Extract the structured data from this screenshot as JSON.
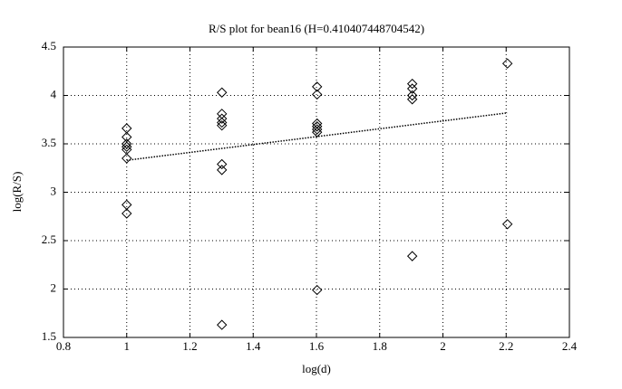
{
  "chart_data": {
    "type": "scatter",
    "title": "R/S plot for bean16 (H=0.410407448704542)",
    "xlabel": "log(d)",
    "ylabel": "log(R/S)",
    "xlim": [
      0.8,
      2.4
    ],
    "xticks": [
      0.8,
      1,
      1.2,
      1.4,
      1.6,
      1.8,
      2,
      2.2,
      2.4
    ],
    "ylim": [
      1.5,
      4.5
    ],
    "yticks": [
      1.5,
      2,
      2.5,
      3,
      3.5,
      4,
      4.5
    ],
    "grid": true,
    "series": [
      {
        "type": "scatter",
        "color": "#000000",
        "x": [
          1,
          1,
          1,
          1,
          1,
          1,
          1,
          1,
          1.301,
          1.301,
          1.301,
          1.301,
          1.301,
          1.301,
          1.301,
          1.301,
          1.602,
          1.602,
          1.602,
          1.602,
          1.602,
          1.602,
          1.602,
          1.903,
          1.903,
          1.903,
          1.903,
          1.903,
          2.204,
          2.204
        ],
        "values": [
          3.66,
          3.57,
          3.5,
          3.47,
          3.44,
          3.35,
          2.87,
          2.78,
          4.03,
          3.81,
          3.76,
          3.72,
          3.69,
          3.29,
          3.23,
          1.63,
          4.09,
          4.01,
          3.71,
          3.68,
          3.65,
          3.62,
          1.99,
          4.12,
          4.07,
          4.0,
          3.96,
          2.34,
          4.33,
          2.67
        ]
      },
      {
        "type": "line",
        "color": "#000000",
        "x": [
          1,
          2.204
        ],
        "values": [
          3.33,
          3.82
        ]
      }
    ]
  }
}
